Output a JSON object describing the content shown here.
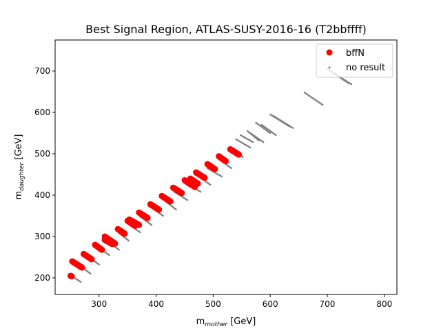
{
  "chart_data": {
    "type": "scatter",
    "title": "Best Signal Region, ATLAS-SUSY-2016-16 (T2bbffff)",
    "xlabel": {
      "base": "m",
      "sub": "mother",
      "unit": " [GeV]"
    },
    "ylabel": {
      "base": "m",
      "sub": "daughter",
      "unit": " [GeV]"
    },
    "xlim": [
      223,
      822
    ],
    "ylim": [
      160,
      775
    ],
    "xticks": [
      300,
      400,
      500,
      600,
      700,
      800
    ],
    "yticks": [
      200,
      300,
      400,
      500,
      600,
      700
    ],
    "grid": false,
    "legend_position": "top-right",
    "series": [
      {
        "name": "bffN",
        "color": "#ff0000",
        "marker": "circle-large",
        "segments": [
          [
            [
              250,
              205
            ],
            [
              252,
              204
            ]
          ],
          [
            [
              253,
              240
            ],
            [
              270,
              225
            ]
          ],
          [
            [
              273,
              258
            ],
            [
              287,
              245
            ]
          ],
          [
            [
              293,
              280
            ],
            [
              305,
              268
            ]
          ],
          [
            [
              310,
              292
            ],
            [
              323,
              282
            ]
          ],
          [
            [
              310,
              300
            ],
            [
              325,
              285
            ]
          ],
          [
            [
              315,
              295
            ],
            [
              328,
              283
            ]
          ],
          [
            [
              333,
              318
            ],
            [
              345,
              307
            ]
          ],
          [
            [
              350,
              338
            ],
            [
              363,
              326
            ]
          ],
          [
            [
              353,
              341
            ],
            [
              370,
              328
            ]
          ],
          [
            [
              370,
              358
            ],
            [
              385,
              345
            ]
          ],
          [
            [
              390,
              378
            ],
            [
              405,
              365
            ]
          ],
          [
            [
              410,
              398
            ],
            [
              425,
              385
            ]
          ],
          [
            [
              430,
              418
            ],
            [
              445,
              405
            ]
          ],
          [
            [
              450,
              436
            ],
            [
              463,
              424
            ]
          ],
          [
            [
              455,
              433
            ],
            [
              468,
              420
            ]
          ],
          [
            [
              460,
              440
            ],
            [
              473,
              428
            ]
          ],
          [
            [
              470,
              455
            ],
            [
              485,
              442
            ]
          ],
          [
            [
              490,
              475
            ],
            [
              503,
              463
            ]
          ],
          [
            [
              510,
              494
            ],
            [
              522,
              482
            ]
          ],
          [
            [
              530,
              511
            ],
            [
              545,
              498
            ]
          ]
        ]
      },
      {
        "name": "no result",
        "color": "#7f7f7f",
        "marker": "dot-small",
        "segments": [
          [
            [
              255,
              202
            ],
            [
              268,
              190
            ]
          ],
          [
            [
              268,
              228
            ],
            [
              285,
              210
            ]
          ],
          [
            [
              285,
              248
            ],
            [
              300,
              232
            ]
          ],
          [
            [
              300,
              272
            ],
            [
              318,
              255
            ]
          ],
          [
            [
              318,
              285
            ],
            [
              335,
              268
            ]
          ],
          [
            [
              335,
              308
            ],
            [
              352,
              290
            ]
          ],
          [
            [
              352,
              330
            ],
            [
              372,
              310
            ]
          ],
          [
            [
              372,
              348
            ],
            [
              392,
              328
            ]
          ],
          [
            [
              392,
              370
            ],
            [
              412,
              350
            ]
          ],
          [
            [
              412,
              390
            ],
            [
              435,
              365
            ]
          ],
          [
            [
              432,
              408
            ],
            [
              455,
              388
            ]
          ],
          [
            [
              455,
              428
            ],
            [
              478,
              408
            ]
          ],
          [
            [
              472,
              448
            ],
            [
              495,
              425
            ]
          ],
          [
            [
              490,
              465
            ],
            [
              515,
              445
            ]
          ],
          [
            [
              510,
              487
            ],
            [
              532,
              465
            ]
          ],
          [
            [
              532,
              512
            ],
            [
              552,
              492
            ]
          ],
          [
            [
              540,
              535
            ],
            [
              565,
              515
            ]
          ],
          [
            [
              548,
              545
            ],
            [
              570,
              528
            ]
          ],
          [
            [
              560,
              555
            ],
            [
              580,
              532
            ]
          ],
          [
            [
              565,
              550
            ],
            [
              588,
              528
            ]
          ],
          [
            [
              575,
              575
            ],
            [
              600,
              550
            ]
          ],
          [
            [
              585,
              570
            ],
            [
              610,
              545
            ]
          ],
          [
            [
              600,
              595
            ],
            [
              635,
              565
            ]
          ],
          [
            [
              605,
              592
            ],
            [
              640,
              562
            ]
          ],
          [
            [
              660,
              648
            ],
            [
              692,
              618
            ]
          ],
          [
            [
              700,
              705
            ],
            [
              742,
              668
            ]
          ],
          [
            [
              705,
              700
            ],
            [
              738,
              670
            ]
          ]
        ]
      }
    ]
  }
}
